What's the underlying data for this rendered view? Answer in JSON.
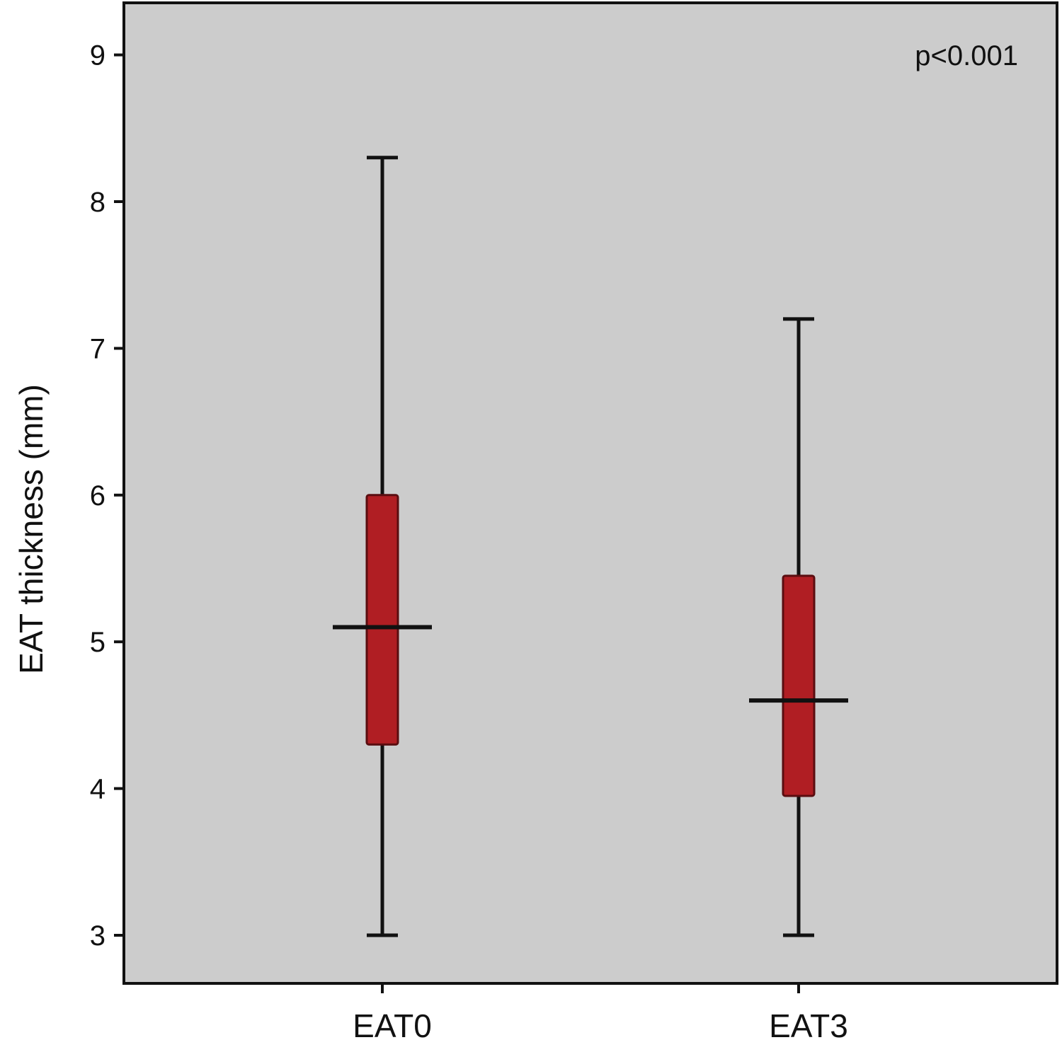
{
  "chart_data": {
    "type": "box",
    "title": "",
    "xlabel": "",
    "ylabel": "EAT thickness (mm)",
    "ylim": [
      2.67,
      9.35
    ],
    "yticks": [
      3,
      4,
      5,
      6,
      7,
      8,
      9
    ],
    "grid": false,
    "categories": [
      "EAT0",
      "EAT3"
    ],
    "boxes": [
      {
        "category": "EAT0",
        "min": 3.0,
        "q1": 4.3,
        "median": 5.1,
        "q3": 6.0,
        "max": 8.3
      },
      {
        "category": "EAT3",
        "min": 3.0,
        "q1": 3.95,
        "median": 4.6,
        "q3": 5.45,
        "max": 7.2
      }
    ],
    "annotation": "p<0.001",
    "colors": {
      "plot_background": "#cccccc",
      "box_fill": "#b01e23",
      "lines": "#111111"
    }
  }
}
